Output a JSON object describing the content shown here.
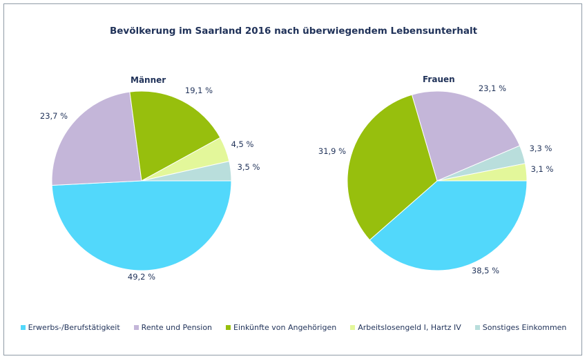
{
  "chart_data": {
    "type": "pie",
    "title": "Bevölkerung im Saarland 2016 nach überwiegendem Lebensunterhalt",
    "categories": [
      "Erwerbs-/Berufstätigkeit",
      "Rente und Pension",
      "Einkünfte von Angehörigen",
      "Arbeitslosengeld I, Hartz IV",
      "Sonstiges Einkommen"
    ],
    "colors": [
      "#52d8fb",
      "#c4b6d9",
      "#97bf0d",
      "#e3f79a",
      "#b9dedc"
    ],
    "pies": [
      {
        "name": "Männer",
        "values": [
          49.2,
          23.7,
          19.1,
          4.5,
          3.5
        ],
        "labels": [
          "49,2 %",
          "23,7 %",
          "19,1 %",
          "4,5 %",
          "3,5 %"
        ]
      },
      {
        "name": "Frauen",
        "values": [
          38.5,
          23.1,
          31.9,
          3.1,
          3.3
        ],
        "labels": [
          "38,5 %",
          "23,1 %",
          "31,9 %",
          "3,1 %",
          "3,3 %"
        ]
      }
    ],
    "legend_position": "bottom"
  }
}
